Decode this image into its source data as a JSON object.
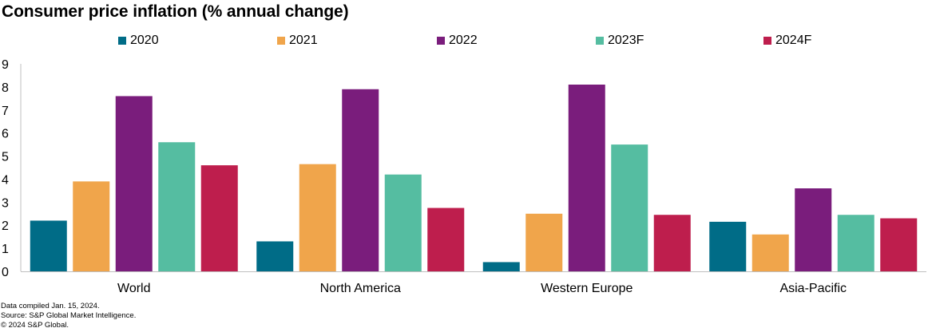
{
  "chart_data": {
    "type": "bar",
    "title": "Consumer price inflation (% annual change)",
    "categories": [
      "World",
      "North America",
      "Western Europe",
      "Asia-Pacific"
    ],
    "series": [
      {
        "name": "2020",
        "color": "#006c87",
        "values": [
          2.2,
          1.3,
          0.4,
          2.15
        ]
      },
      {
        "name": "2021",
        "color": "#f0a54b",
        "values": [
          3.9,
          4.65,
          2.5,
          1.6
        ]
      },
      {
        "name": "2022",
        "color": "#7a1d7c",
        "values": [
          7.6,
          7.9,
          8.1,
          3.6
        ]
      },
      {
        "name": "2023F",
        "color": "#55bda1",
        "values": [
          5.6,
          4.2,
          5.5,
          2.45
        ]
      },
      {
        "name": "2024F",
        "color": "#be1e4d",
        "values": [
          4.6,
          2.75,
          2.45,
          2.3
        ]
      }
    ],
    "ylim": [
      0,
      9
    ],
    "yticks": [
      "0",
      "1",
      "2",
      "3",
      "4",
      "5",
      "6",
      "7",
      "8",
      "9"
    ],
    "grid": false,
    "legend": "top-center"
  },
  "footer": {
    "line1": "Data compiled Jan. 15, 2024.",
    "line2": "Source: S&P Global Market Intelligence.",
    "line3": "© 2024 S&P Global."
  }
}
